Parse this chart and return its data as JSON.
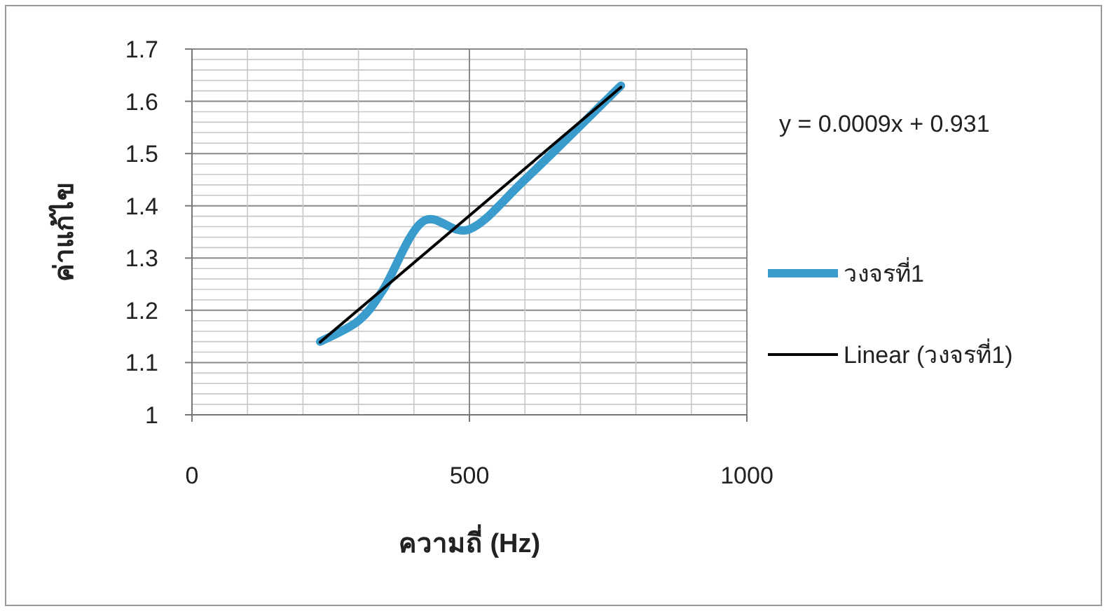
{
  "chart_data": {
    "type": "line",
    "xlabel": "ความถี่ (Hz)",
    "ylabel": "ค่าแก้ไข",
    "annotations": [
      "y = 0.0009x + 0.931"
    ],
    "xlim": [
      0,
      1000
    ],
    "xticks": [
      0,
      500,
      1000
    ],
    "ylim": [
      1,
      1.7
    ],
    "yticks": [
      1,
      1.1,
      1.2,
      1.3,
      1.4,
      1.5,
      1.6,
      1.7
    ],
    "grid": true,
    "legend": "right",
    "series": [
      {
        "name": "วงจรที่1",
        "color": "#3a9ccc",
        "x": [
          231,
          300,
          345,
          416,
          500,
          600,
          773
        ],
        "values": [
          1.14,
          1.18,
          1.24,
          1.37,
          1.355,
          1.45,
          1.63
        ]
      },
      {
        "name": "Linear (วงจรที่1)",
        "color": "#000000",
        "x": [
          231,
          773
        ],
        "values": [
          1.139,
          1.627
        ]
      }
    ]
  }
}
